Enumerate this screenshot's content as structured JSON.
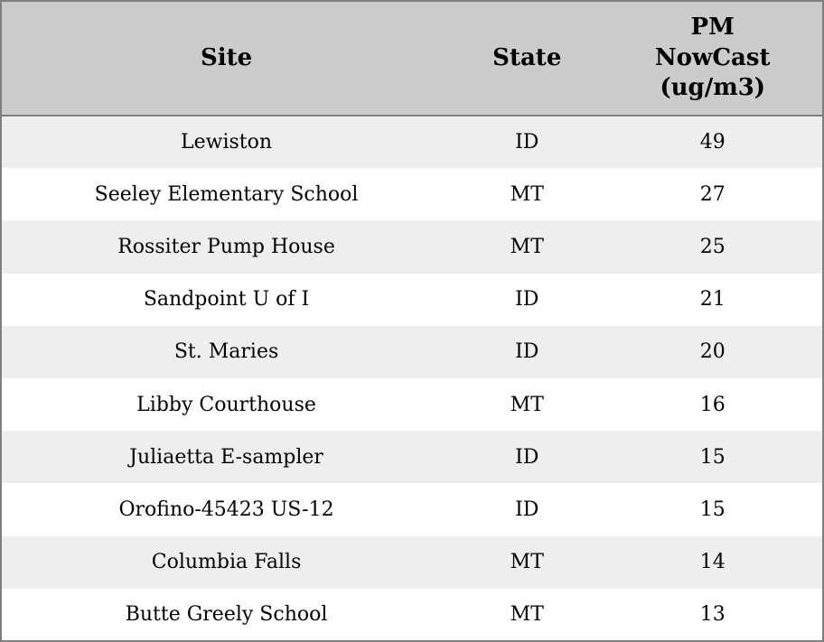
{
  "chart_data": {
    "type": "table",
    "columns": [
      "Site",
      "State",
      "PM NowCast (ug/m3)"
    ],
    "rows": [
      [
        "Lewiston",
        "ID",
        49
      ],
      [
        "Seeley Elementary School",
        "MT",
        27
      ],
      [
        "Rossiter Pump House",
        "MT",
        25
      ],
      [
        "Sandpoint U of I",
        "ID",
        21
      ],
      [
        "St. Maries",
        "ID",
        20
      ],
      [
        "Libby Courthouse",
        "MT",
        16
      ],
      [
        "Juliaetta E-sampler",
        "ID",
        15
      ],
      [
        "Orofino-45423 US-12",
        "ID",
        15
      ],
      [
        "Columbia Falls",
        "MT",
        14
      ],
      [
        "Butte Greely School",
        "MT",
        13
      ]
    ],
    "layout": {
      "striped": true,
      "header_position": "top"
    }
  },
  "header": {
    "site_label": "Site",
    "state_label": "State",
    "pm_lines": [
      "PM",
      "NowCast",
      "(ug/m3)"
    ]
  },
  "colors": {
    "header_bg": "#cccccc",
    "row_stripe_bg": "#eeeeee",
    "row_bg": "#ffffff",
    "border": "#7f7f7f",
    "text": "#000000"
  }
}
